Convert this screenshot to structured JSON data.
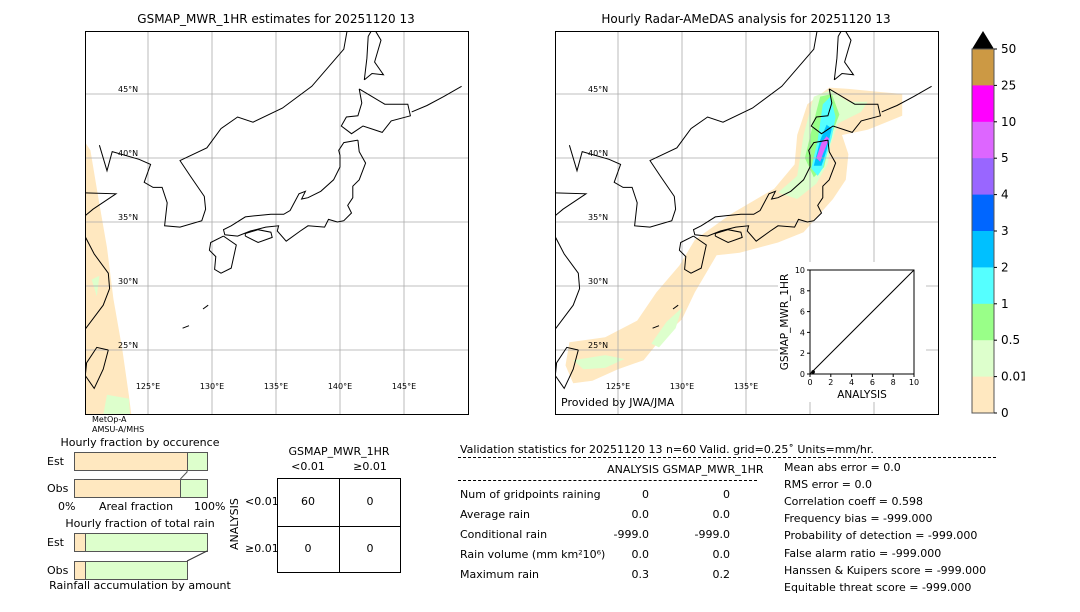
{
  "left_map": {
    "title": "GSMAP_MWR_1HR estimates for 20251120 13",
    "sensor_line1": "MetOp-A",
    "sensor_line2": "AMSU-A/MHS"
  },
  "right_map": {
    "title": "Hourly Radar-AMeDAS analysis for 20251120 13",
    "credit": "Provided by JWA/JMA"
  },
  "map_axes": {
    "lat_labels": [
      "45°N",
      "40°N",
      "35°N",
      "30°N",
      "25°N"
    ],
    "lon_labels": [
      "125°E",
      "130°E",
      "135°E",
      "140°E",
      "145°E"
    ]
  },
  "colorbar": {
    "labels": [
      "50",
      "25",
      "10",
      "5",
      "4",
      "3",
      "2",
      "1",
      "0.5",
      "0.01",
      "0"
    ],
    "colors": [
      "#cc9944",
      "#ff00ff",
      "#dd66ff",
      "#9966ff",
      "#0066ff",
      "#00c0ff",
      "#55ffff",
      "#99ff88",
      "#ddffcc",
      "#ffe8c0"
    ],
    "extend_color": "#000000"
  },
  "chart_data": [
    {
      "type": "scatter",
      "xlabel": "ANALYSIS",
      "ylabel": "GSMAP_MWR_1HR",
      "xlim": [
        0,
        10
      ],
      "ylim": [
        0,
        10
      ],
      "xticks": [
        "0",
        "2",
        "4",
        "6",
        "8",
        "10"
      ],
      "yticks": [
        "0",
        "2",
        "4",
        "6",
        "8",
        "10"
      ],
      "points": [
        [
          0.3,
          0.2
        ]
      ],
      "reference_line": "y=x"
    },
    {
      "type": "bar",
      "title": "Hourly fraction by occurence",
      "categories": [
        "Est",
        "Obs"
      ],
      "series": [
        {
          "values": [
            0.85,
            0.8
          ],
          "color": "#ffe8c0"
        },
        {
          "values": [
            0.15,
            0.2
          ],
          "color": "#ddffcc"
        }
      ],
      "xlabel": "Areal fraction",
      "xtick_left": "0%",
      "xtick_right": "100%"
    },
    {
      "type": "bar",
      "title": "Hourly fraction of total rain",
      "categories": [
        "Est",
        "Obs"
      ],
      "series": [
        {
          "values": [
            0.08,
            0.08
          ],
          "color": "#ffe8c0"
        },
        {
          "values": [
            0.92,
            0.77
          ],
          "color": "#ddffcc"
        }
      ],
      "caption": "Rainfall accumulation by amount"
    }
  ],
  "contingency": {
    "title": "GSMAP_MWR_1HR",
    "col_headers": [
      "<0.01",
      "≥0.01"
    ],
    "row_axis": "ANALYSIS",
    "row_headers": [
      "<0.01",
      "≥0.01"
    ],
    "cells": [
      [
        "60",
        "0"
      ],
      [
        "0",
        "0"
      ]
    ]
  },
  "stats": {
    "title": "Validation statistics for 20251120 13  n=60 Valid. grid=0.25˚ Units=mm/hr.",
    "col_headers": [
      "ANALYSIS",
      "GSMAP_MWR_1HR"
    ],
    "rows": [
      {
        "label": "Num of gridpoints raining",
        "analysis": "0",
        "gsmap": "0"
      },
      {
        "label": "Average rain",
        "analysis": "0.0",
        "gsmap": "0.0"
      },
      {
        "label": "Conditional rain",
        "analysis": "-999.0",
        "gsmap": "-999.0"
      },
      {
        "label": "Rain volume (mm km²10⁶)",
        "analysis": "0.0",
        "gsmap": "0.0"
      },
      {
        "label": "Maximum rain",
        "analysis": "0.3",
        "gsmap": "0.2"
      }
    ],
    "scores": [
      "Mean abs error =    0.0",
      "RMS error =    0.0",
      "Correlation coeff =  0.598",
      "Frequency bias = -999.000",
      "Probability of detection = -999.000",
      "False alarm ratio = -999.000",
      "Hanssen & Kuipers score = -999.000",
      "Equitable threat score = -999.000"
    ]
  }
}
